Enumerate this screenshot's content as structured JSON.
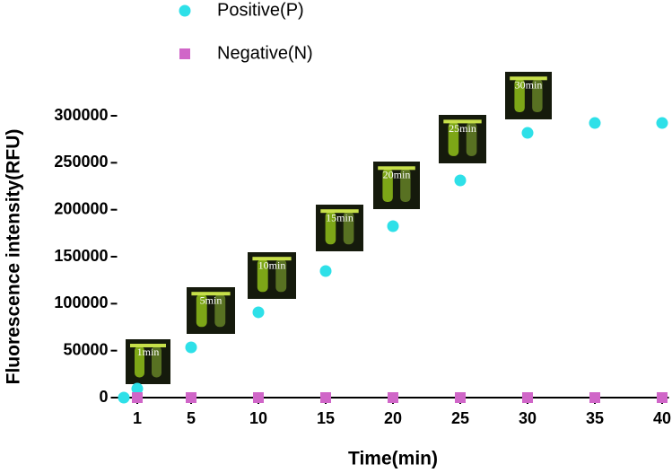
{
  "chart_data": {
    "type": "scatter",
    "xlabel": "Time(min)",
    "ylabel": "Fluorescence intensity(RFU)",
    "xlim": [
      -0.5,
      40.5
    ],
    "xticks": [
      1,
      5,
      10,
      15,
      20,
      25,
      30,
      35,
      40
    ],
    "ylim": [
      0,
      300000
    ],
    "yticks": [
      0,
      50000,
      100000,
      150000,
      200000,
      250000,
      300000
    ],
    "series": [
      {
        "name": "Positive(P)",
        "color": "#2ee0e8",
        "marker": "circle",
        "x": [
          0,
          1,
          5,
          10,
          15,
          20,
          25,
          30,
          35,
          40
        ],
        "values": [
          0,
          9500,
          53500,
          90800,
          134700,
          182500,
          231200,
          281800,
          292300,
          292300
        ]
      },
      {
        "name": "Negative(N)",
        "color": "#d066c8",
        "marker": "square",
        "x": [
          1,
          5,
          10,
          15,
          20,
          25,
          30,
          35,
          40
        ],
        "values": [
          0,
          0,
          0,
          0,
          0,
          0,
          0,
          0,
          0
        ]
      }
    ],
    "annotations": [
      "1min",
      "5min",
      "10min",
      "15min",
      "20min",
      "25min",
      "30min"
    ]
  }
}
